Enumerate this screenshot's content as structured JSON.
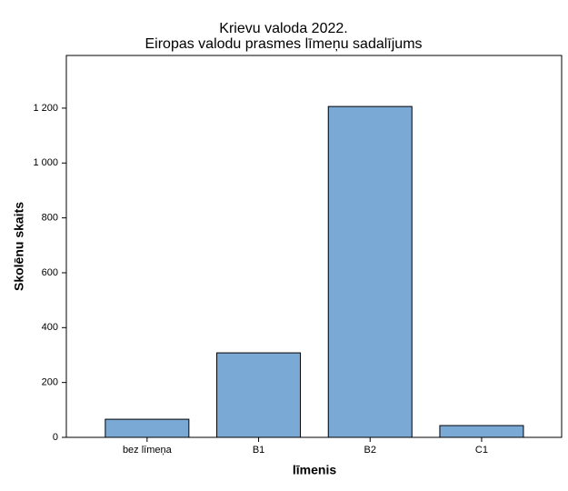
{
  "chart_data": {
    "type": "bar",
    "title": "Krievu valoda 2022.",
    "subtitle": "Eiropas valodu prasmes līmeņu sadalījums",
    "x_label": "līmenis",
    "y_label": "Skolēnu skaits",
    "categories": [
      "bez līmeņa",
      "B1",
      "B2",
      "C1"
    ],
    "values": [
      66,
      308,
      1206,
      43
    ],
    "color": "#7ba9d6",
    "ylim": [
      0,
      1392
    ],
    "yticks": [
      0,
      200,
      400,
      600,
      800,
      {
        "value": 1000,
        "label": "1 000"
      },
      {
        "value": 1200,
        "label": "1 200"
      }
    ],
    "grid": false
  }
}
